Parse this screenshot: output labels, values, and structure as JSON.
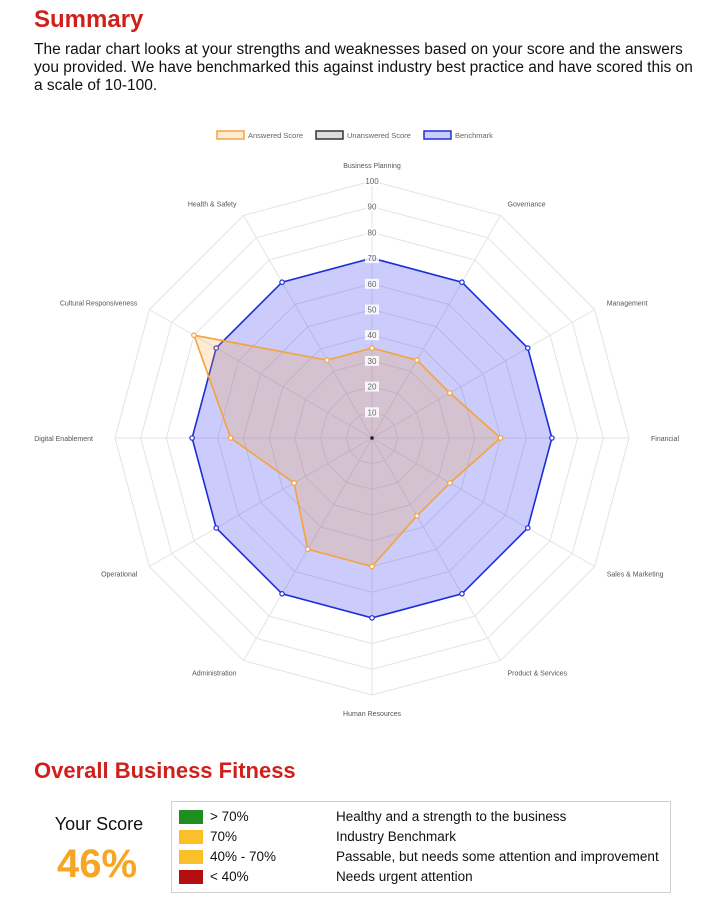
{
  "summary": {
    "title": "Summary",
    "text": "The radar chart looks at your strengths and weaknesses based on your score and the answers you provided. We have benchmarked this against industry best practice and have scored this on a scale of 10-100."
  },
  "chart_data": {
    "type": "radar",
    "axes": [
      "Business Planning",
      "Governance",
      "Management",
      "Financial",
      "Sales & Marketing",
      "Product & Services",
      "Human Resources",
      "Administration",
      "Operational",
      "Digital Enablement",
      "Cultural Responsiveness",
      "Health & Safety"
    ],
    "ticks": [
      10,
      20,
      30,
      40,
      50,
      60,
      70,
      80,
      90,
      100
    ],
    "range": [
      0,
      100
    ],
    "legend_position": "top",
    "series": [
      {
        "name": "Answered Score",
        "stroke": "#f5a33a",
        "fill": "rgba(245,163,58,0.22)",
        "values": [
          35,
          35,
          35,
          50,
          35,
          35,
          50,
          50,
          35,
          55,
          80,
          35
        ]
      },
      {
        "name": "Unanswered Score",
        "stroke": "#333333",
        "fill": "rgba(160,160,160,0.35)",
        "values": []
      },
      {
        "name": "Benchmark",
        "stroke": "#1c2fd6",
        "fill": "rgba(70,70,245,0.28)",
        "values": [
          70,
          70,
          70,
          70,
          70,
          70,
          70,
          70,
          70,
          70,
          70,
          70
        ]
      }
    ]
  },
  "fitness": {
    "title": "Overall Business Fitness",
    "your_score_label": "Your Score",
    "your_score_value": "46%",
    "legend": [
      {
        "range": "> 70%",
        "desc": "Healthy and a strength to the business",
        "color": "#1e8f1e"
      },
      {
        "range": "70%",
        "desc": "Industry Benchmark",
        "color": "#fbbf2a"
      },
      {
        "range": "40% - 70%",
        "desc": "Passable, but needs some attention and improvement",
        "color": "#fbbf2a"
      },
      {
        "range": "< 40%",
        "desc": "Needs urgent attention",
        "color": "#b50d0d"
      }
    ]
  }
}
